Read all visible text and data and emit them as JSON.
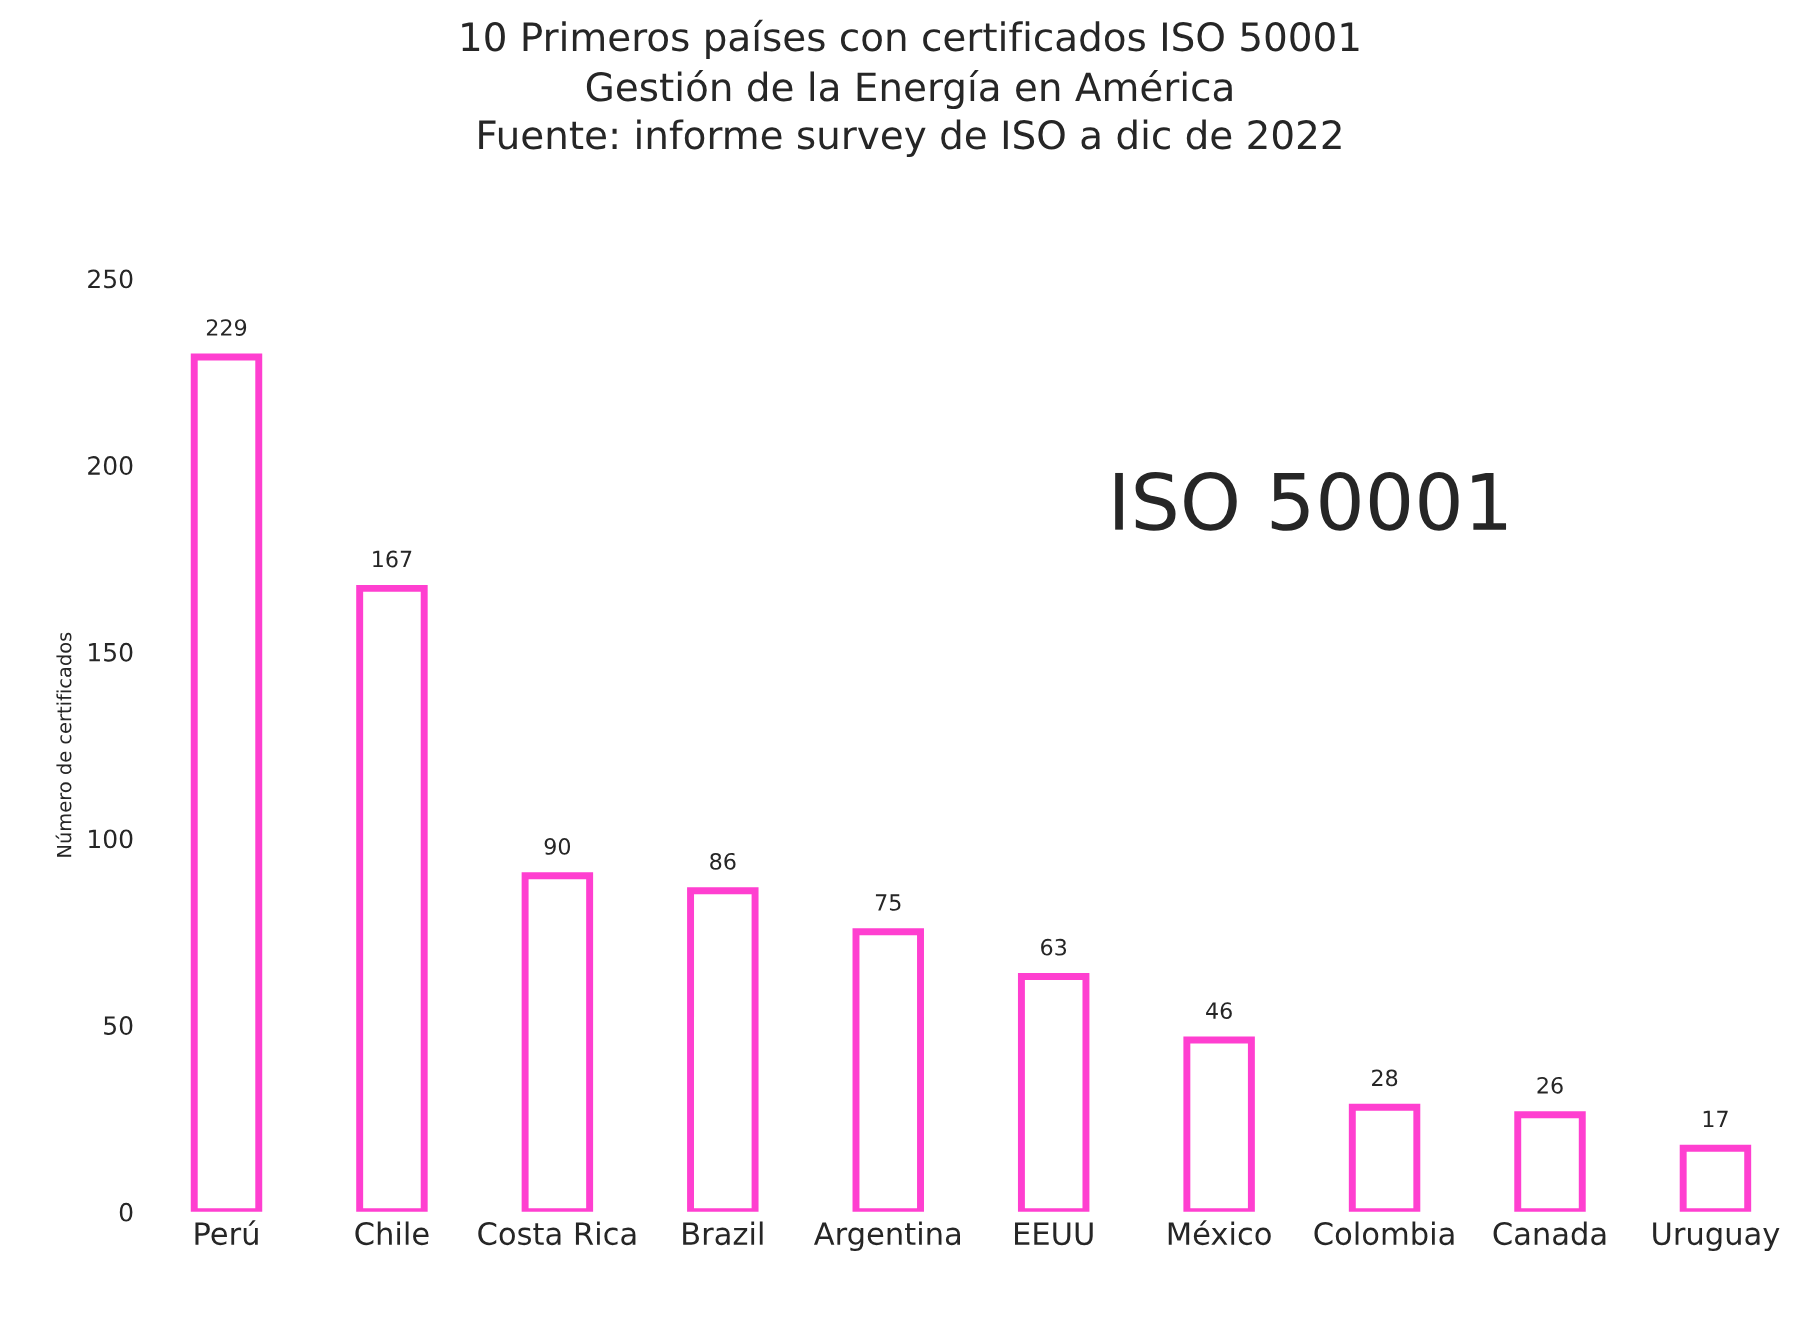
{
  "chart_data": {
    "type": "bar",
    "title": "10 Primeros países con certificados ISO 50001\nGestión de la Energía en América\nFuente: informe survey de ISO a dic de 2022",
    "ylabel": "Número de certificados",
    "categories": [
      "Perú",
      "Chile",
      "Costa Rica",
      "Brazil",
      "Argentina",
      "EEUU",
      "México",
      "Colombia",
      "Canada",
      "Uruguay"
    ],
    "values": [
      229,
      167,
      90,
      86,
      75,
      63,
      46,
      28,
      26,
      17
    ],
    "color": "#ff3fd0",
    "ylim": [
      0,
      250
    ],
    "yticks": [
      0,
      50,
      100,
      150,
      200,
      250
    ],
    "data_labels": true,
    "grid": false,
    "legend": false,
    "annotations": [
      "ISO 50001"
    ]
  }
}
